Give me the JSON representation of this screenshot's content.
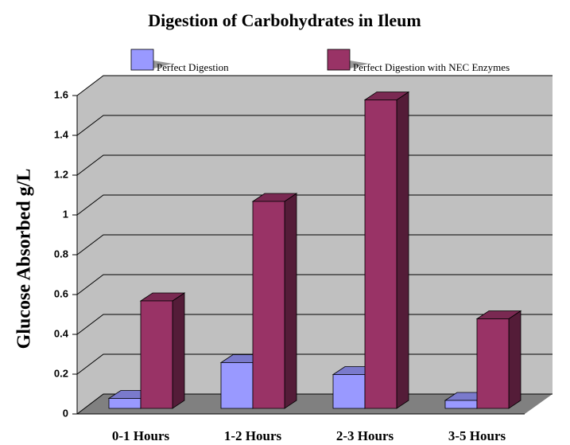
{
  "chart_data": {
    "type": "bar3d",
    "title": "Digestion of Carbohydrates in Ileum",
    "y_axis_label": "Glucose  Absorbed g/L",
    "categories": [
      "0-1 Hours",
      "1-2 Hours",
      "2-3 Hours",
      "3-5 Hours"
    ],
    "series": [
      {
        "name": "Perfect Digestion",
        "color": "#9999ff",
        "values": [
          0.05,
          0.23,
          0.17,
          0.04
        ]
      },
      {
        "name": "Perfect Digestion with NEC Enzymes",
        "color": "#993366",
        "values": [
          0.54,
          1.04,
          1.55,
          0.45
        ]
      }
    ],
    "ylim": [
      0,
      1.6
    ],
    "yticks": [
      0,
      0.2,
      0.4,
      0.6,
      0.8,
      1,
      1.2,
      1.4,
      1.6
    ],
    "grid": true
  }
}
